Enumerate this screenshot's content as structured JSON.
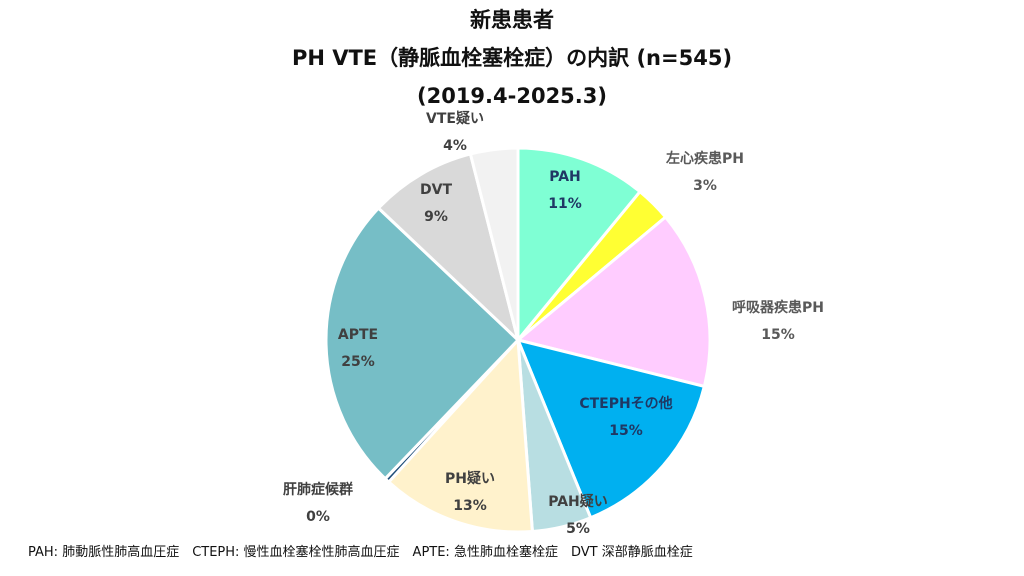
{
  "title": {
    "line1": "新患患者",
    "line2": "PH VTE（静脈血栓塞栓症）の内訳 (n=545)",
    "line3": "(2019.4-2025.3)"
  },
  "footnote": "PAH: 肺動脈性肺高血圧症　CTEPH: 慢性血栓塞栓性肺高血圧症　APTE: 急性肺血栓塞栓症　DVT 深部静脈血栓症",
  "chart_data": {
    "type": "pie",
    "n": 545,
    "slices": [
      {
        "label": "PAH",
        "value": 11,
        "pct_label": "11%",
        "color": "#7fffd4",
        "label_color": "#1f3864"
      },
      {
        "label": "左心疾患PH",
        "value": 3,
        "pct_label": "3%",
        "color": "#ffff33",
        "label_color": "#595959"
      },
      {
        "label": "呼吸器疾患PH",
        "value": 15,
        "pct_label": "15%",
        "color": "#ffccff",
        "label_color": "#595959"
      },
      {
        "label": "CTEPHその他",
        "value": 15,
        "pct_label": "15%",
        "color": "#00b0f0",
        "label_color": "#1f3864"
      },
      {
        "label": "PAH疑い",
        "value": 5,
        "pct_label": "5%",
        "color": "#b8dee2",
        "label_color": "#404040"
      },
      {
        "label": "PH疑い",
        "value": 13,
        "pct_label": "13%",
        "color": "#fff2cc",
        "label_color": "#404040"
      },
      {
        "label": "肝肺症候群",
        "value": 0.4,
        "pct_label": "0%",
        "color": "#1f4e79",
        "label_color": "#404040"
      },
      {
        "label": "APTE",
        "value": 25,
        "pct_label": "25%",
        "color": "#76bec6",
        "label_color": "#404040"
      },
      {
        "label": "DVT",
        "value": 9,
        "pct_label": "9%",
        "color": "#d9d9d9",
        "label_color": "#404040"
      },
      {
        "label": "VTE疑い",
        "value": 4,
        "pct_label": "4%",
        "color": "#f2f2f2",
        "label_color": "#404040"
      }
    ]
  }
}
